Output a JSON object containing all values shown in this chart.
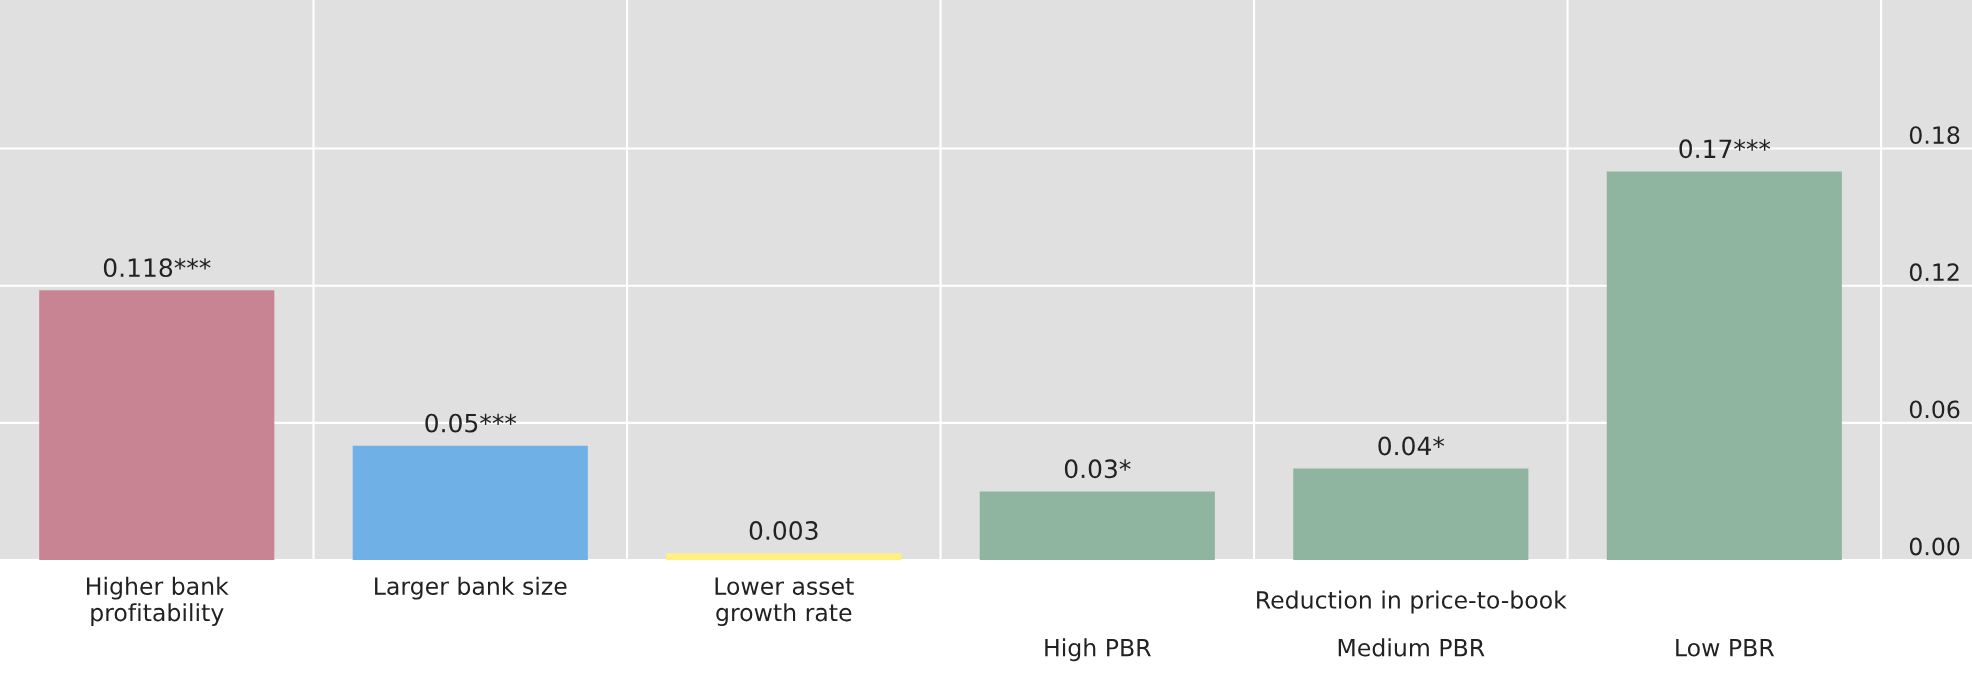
{
  "chart_data": {
    "type": "bar",
    "categories": [
      "Higher bank\nprofitability",
      "Larger bank size",
      "Lower asset\ngrowth rate",
      "High PBR",
      "Medium PBR",
      "Low PBR"
    ],
    "values": [
      0.118,
      0.05,
      0.003,
      0.03,
      0.04,
      0.17
    ],
    "colors": [
      "#c98494",
      "#6fb1e6",
      "#fff080",
      "#8fb5a0",
      "#8fb5a0",
      "#8fb5a0"
    ],
    "value_labels": [
      "0.118***",
      "0.05***",
      "0.003",
      "0.03*",
      "0.04*",
      "0.17***"
    ],
    "ylim": [
      0,
      0.245
    ],
    "yticks": [
      {
        "value": 0,
        "label": "0.00"
      },
      {
        "value": 0.06,
        "label": "0.06"
      },
      {
        "value": 0.12,
        "label": "0.12"
      },
      {
        "value": 0.18,
        "label": "0.18"
      }
    ],
    "annotations": [
      "Reduction in price-to-book"
    ],
    "grid": true
  }
}
